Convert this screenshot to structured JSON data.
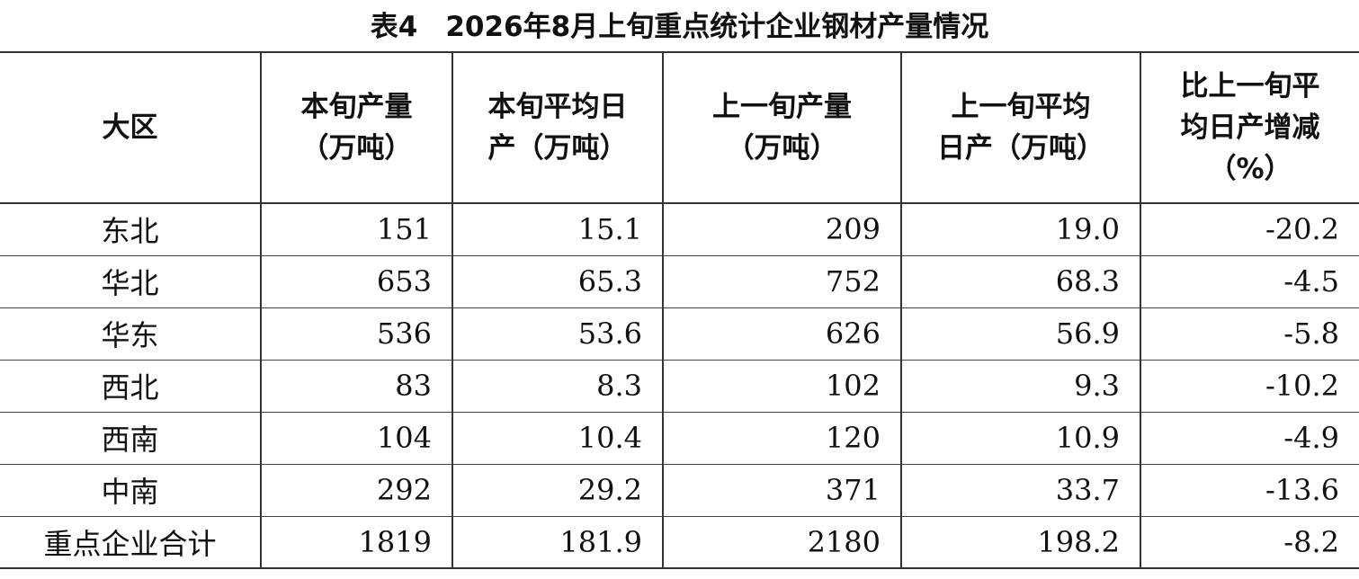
{
  "title": "表4　2026年8月上旬重点统计企业钢材产量情况",
  "table": {
    "header": [
      [
        "大区"
      ],
      [
        "本旬产量",
        "（万吨）"
      ],
      [
        "本旬平均日",
        "产（万吨）"
      ],
      [
        "上一旬产量",
        "（万吨）"
      ],
      [
        "上一旬平均",
        "日产（万吨）"
      ],
      [
        "比上一旬平",
        "均日产增减",
        "（%）"
      ]
    ],
    "rows": [
      [
        "东北",
        "151",
        "15.1",
        "209",
        "19.0",
        "-20.2"
      ],
      [
        "华北",
        "653",
        "65.3",
        "752",
        "68.3",
        "-4.5"
      ],
      [
        "华东",
        "536",
        "53.6",
        "626",
        "56.9",
        "-5.8"
      ],
      [
        "西北",
        "83",
        "8.3",
        "102",
        "9.3",
        "-10.2"
      ],
      [
        "西南",
        "104",
        "10.4",
        "120",
        "10.9",
        "-4.9"
      ],
      [
        "中南",
        "292",
        "29.2",
        "371",
        "33.7",
        "-13.6"
      ],
      [
        "重点企业合计",
        "1819",
        "181.9",
        "2180",
        "198.2",
        "-8.2"
      ]
    ]
  }
}
